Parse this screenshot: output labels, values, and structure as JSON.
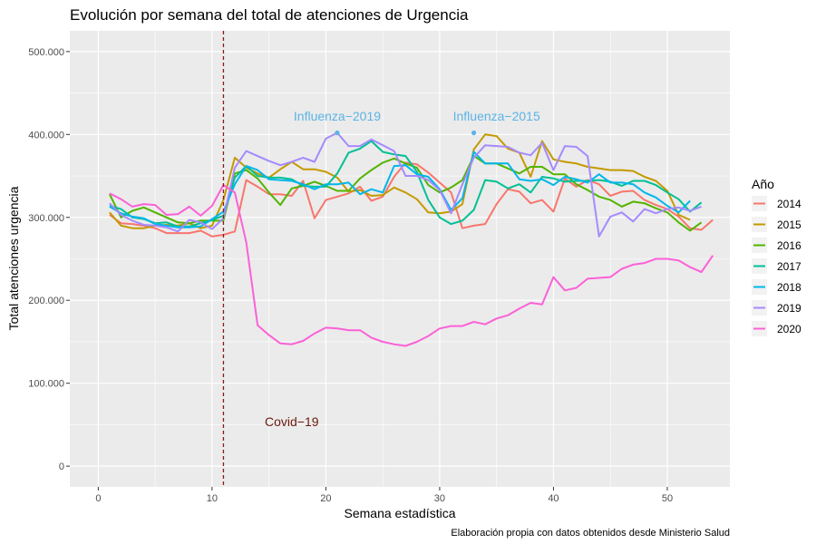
{
  "chart_data": {
    "type": "line",
    "title": "Evolución por semana del total de atenciones de Urgencia",
    "xlabel": "Semana estadística",
    "ylabel": "Total atenciones urgencia",
    "caption": "Elaboración propia con datos obtenidos desde Ministerio Salud",
    "xlim": [
      -2.5,
      55.5
    ],
    "ylim": [
      -25000,
      525000
    ],
    "x_ticks": [
      0,
      10,
      20,
      30,
      40,
      50
    ],
    "x_tick_labels": [
      "0",
      "10",
      "20",
      "30",
      "40",
      "50"
    ],
    "y_ticks": [
      0,
      100000,
      200000,
      300000,
      400000,
      500000
    ],
    "y_tick_labels": [
      "0",
      "100.000",
      "200.000",
      "300.000",
      "400.000",
      "500.000"
    ],
    "grid": true,
    "background": "#ebebeb",
    "legend": {
      "title": "Año",
      "position": "right"
    },
    "series": [
      {
        "name": "2014",
        "color": "#F8766D",
        "values": [
          303000,
          293000,
          292000,
          290000,
          287000,
          281000,
          281000,
          281000,
          284000,
          277000,
          279000,
          283000,
          345000,
          337000,
          328000,
          328000,
          326000,
          344000,
          299000,
          321000,
          325000,
          329000,
          337000,
          320000,
          325000,
          349000,
          366000,
          364000,
          354000,
          342000,
          330000,
          287000,
          290000,
          292000,
          316000,
          334000,
          331000,
          317000,
          321000,
          307000,
          347000,
          337000,
          345000,
          340000,
          326000,
          331000,
          332000,
          321000,
          315000,
          310000,
          301000,
          287000,
          285000,
          297000
        ]
      },
      {
        "name": "2015",
        "color": "#C49A00",
        "values": [
          306000,
          290000,
          287000,
          287000,
          290000,
          291000,
          290000,
          293000,
          287000,
          290000,
          321000,
          372000,
          360000,
          353000,
          348000,
          358000,
          367000,
          358000,
          358000,
          355000,
          348000,
          331000,
          333000,
          326000,
          327000,
          336000,
          330000,
          322000,
          306000,
          305000,
          307000,
          316000,
          382000,
          400000,
          398000,
          383000,
          378000,
          349000,
          392000,
          370000,
          367000,
          365000,
          361000,
          359000,
          357000,
          357000,
          356000,
          349000,
          344000,
          332000,
          303000,
          297000
        ]
      },
      {
        "name": "2016",
        "color": "#53B400",
        "values": [
          328000,
          300000,
          308000,
          312000,
          306000,
          300000,
          294000,
          293000,
          296000,
          296000,
          296000,
          353000,
          357000,
          347000,
          330000,
          315000,
          335000,
          338000,
          343000,
          338000,
          332000,
          332000,
          347000,
          357000,
          366000,
          371000,
          365000,
          360000,
          339000,
          330000,
          336000,
          345000,
          374000,
          365000,
          365000,
          359000,
          353000,
          361000,
          361000,
          352000,
          352000,
          340000,
          333000,
          325000,
          321000,
          313000,
          319000,
          317000,
          311000,
          306000,
          294000,
          284000,
          294000
        ]
      },
      {
        "name": "2017",
        "color": "#00C094",
        "values": [
          314000,
          310000,
          300000,
          298000,
          293000,
          294000,
          289000,
          289000,
          293000,
          297000,
          302000,
          348000,
          362000,
          350000,
          348000,
          348000,
          346000,
          338000,
          337000,
          337000,
          353000,
          378000,
          383000,
          392000,
          379000,
          376000,
          374000,
          355000,
          321000,
          300000,
          292000,
          296000,
          309000,
          345000,
          343000,
          335000,
          340000,
          330000,
          349000,
          347000,
          343000,
          344000,
          344000,
          345000,
          343000,
          338000,
          344000,
          344000,
          339000,
          330000,
          322000,
          307000,
          318000
        ]
      },
      {
        "name": "2018",
        "color": "#00B6EB",
        "values": [
          313000,
          305000,
          301000,
          299000,
          292000,
          290000,
          288000,
          288000,
          289000,
          298000,
          307000,
          340000,
          362000,
          357000,
          346000,
          345000,
          344000,
          340000,
          334000,
          340000,
          340000,
          342000,
          328000,
          334000,
          330000,
          362000,
          363000,
          352000,
          349000,
          334000,
          309000,
          323000,
          379000,
          365000,
          365000,
          365000,
          346000,
          344000,
          346000,
          339000,
          349000,
          346000,
          342000,
          352000,
          342000,
          342000,
          340000,
          330000,
          324000,
          314000,
          306000,
          320000
        ]
      },
      {
        "name": "2019",
        "color": "#A58AFF",
        "values": [
          317000,
          303000,
          296000,
          291000,
          290000,
          288000,
          283000,
          297000,
          294000,
          286000,
          299000,
          360000,
          380000,
          374000,
          368000,
          363000,
          367000,
          372000,
          367000,
          395000,
          402000,
          386000,
          386000,
          394000,
          387000,
          380000,
          350000,
          350000,
          345000,
          333000,
          305000,
          340000,
          372000,
          387000,
          386000,
          385000,
          378000,
          375000,
          390000,
          357000,
          386000,
          385000,
          374000,
          277000,
          301000,
          306000,
          295000,
          310000,
          305000,
          310000,
          312000,
          308000,
          313000
        ]
      },
      {
        "name": "2020",
        "color": "#FB61D7",
        "values": [
          329000,
          322000,
          313000,
          316000,
          315000,
          303000,
          304000,
          313000,
          302000,
          314000,
          339000,
          330000,
          270000,
          170000,
          158000,
          148000,
          147000,
          151000,
          160000,
          167000,
          166000,
          164000,
          164000,
          155000,
          150000,
          147000,
          145000,
          150000,
          157000,
          166000,
          169000,
          169000,
          174000,
          171000,
          178000,
          182000,
          190000,
          197000,
          195000,
          228000,
          212000,
          215000,
          226000,
          227000,
          228000,
          238000,
          243000,
          245000,
          250000,
          250000,
          248000,
          240000,
          234000,
          254000
        ]
      }
    ],
    "vline": {
      "x": 11,
      "color": "#8B1A1A",
      "dash": "4,3"
    },
    "annotations": [
      {
        "text": "Covid−19",
        "x": 17,
        "y": 48000,
        "color": "#6B1A0E"
      },
      {
        "text": "Influenza−2019",
        "x": 21,
        "y": 417000,
        "color": "#5BB4E5"
      },
      {
        "text": "Influenza−2015",
        "x": 35,
        "y": 417000,
        "color": "#5BB4E5"
      }
    ],
    "highlight_points": [
      {
        "x": 21,
        "y": 402000,
        "color": "#5BB4E5"
      },
      {
        "x": 33,
        "y": 402000,
        "color": "#5BB4E5"
      }
    ]
  }
}
